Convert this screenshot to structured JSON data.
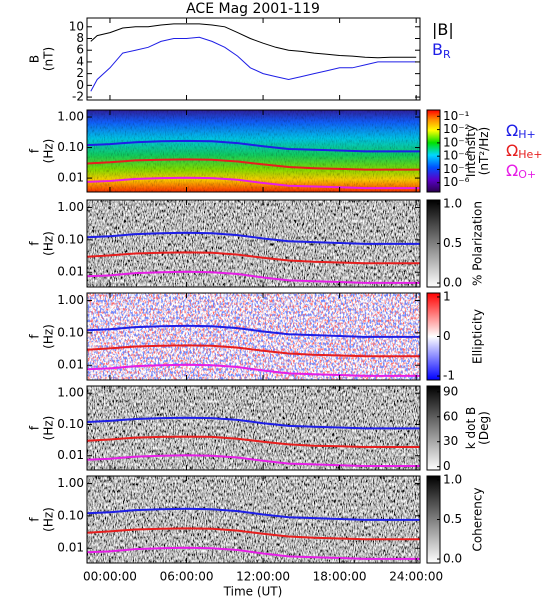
{
  "chart_data": [
    {
      "type": "line",
      "title": "ACE Mag 2001-119",
      "ylabel": [
        "B",
        "(nT)"
      ],
      "x": [
        -1.5,
        -1,
        0,
        1,
        2,
        3,
        4,
        5,
        6,
        7,
        8,
        9,
        10,
        11,
        12,
        13,
        14,
        15,
        16,
        17,
        18,
        19,
        20,
        21,
        22,
        23,
        24
      ],
      "series": [
        {
          "name": "|B|",
          "color": "#000000",
          "values": [
            7.5,
            8.5,
            9,
            9.8,
            10,
            10,
            10.3,
            10.5,
            10.5,
            10.5,
            10.3,
            10,
            9,
            8,
            7.2,
            6.5,
            6,
            5.8,
            5.5,
            5.3,
            5.1,
            5,
            4.8,
            4.7,
            4.8,
            4.8,
            4.8
          ]
        },
        {
          "name": "B",
          "subscript": "R",
          "color": "#1e1ee6",
          "values": [
            -1,
            1,
            3,
            5.5,
            6,
            6.5,
            7.5,
            8,
            8,
            8.2,
            7.5,
            6.5,
            5,
            3,
            2,
            1.5,
            1,
            1.5,
            2,
            2.5,
            3,
            3,
            3.5,
            4,
            4,
            4,
            4
          ]
        }
      ],
      "xlim": [
        -1.8,
        24.3
      ],
      "xticks": [
        0,
        6,
        12,
        18,
        24
      ],
      "ylim": [
        -2.5,
        11.5
      ],
      "yticks": [
        -2,
        0,
        2,
        4,
        6,
        8,
        10
      ]
    },
    {
      "type": "spectrogram",
      "ylabel": [
        "f",
        "(Hz)"
      ],
      "ylog": true,
      "colorscale": "rainbow",
      "zlog": true,
      "zlabel": [
        "Intensity",
        "(nT²/Hz)"
      ],
      "x": [
        -1.8,
        0,
        2,
        4,
        6,
        8,
        10,
        12,
        14,
        16,
        18,
        20,
        22,
        24.3
      ],
      "series": [
        {
          "name": "Ω",
          "subscript": "H+",
          "color": "#1e1ee6",
          "values": [
            0.12,
            0.13,
            0.15,
            0.16,
            0.165,
            0.16,
            0.14,
            0.11,
            0.09,
            0.085,
            0.08,
            0.075,
            0.075,
            0.075
          ]
        },
        {
          "name": "Ω",
          "subscript": "He+",
          "color": "#e61e1e",
          "values": [
            0.03,
            0.033,
            0.038,
            0.04,
            0.041,
            0.04,
            0.035,
            0.028,
            0.023,
            0.021,
            0.02,
            0.019,
            0.019,
            0.019
          ]
        },
        {
          "name": "Ω",
          "subscript": "O+",
          "color": "#e61ee6",
          "values": [
            0.0075,
            0.008,
            0.0094,
            0.01,
            0.0103,
            0.01,
            0.0088,
            0.0069,
            0.0056,
            0.0053,
            0.005,
            0.0047,
            0.0047,
            0.0047
          ]
        }
      ],
      "xlim": [
        -1.8,
        24.3
      ],
      "xticks": [
        0,
        6,
        12,
        18,
        24
      ],
      "ylim": [
        0.0035,
        1.7
      ],
      "yticks": [
        {
          "value": 1,
          "label": "1.00"
        },
        {
          "value": 0.1,
          "label": "0.10"
        },
        0.01
      ],
      "zlim": [
        2e-07,
        0.3
      ],
      "zticks": [
        {
          "value": 0.1,
          "label": "10⁻¹"
        },
        {
          "value": 0.01,
          "label": "10⁻²"
        },
        {
          "value": 0.001,
          "label": "10⁻³"
        },
        {
          "value": 0.0001,
          "label": "10⁻⁴"
        },
        {
          "value": 1e-05,
          "label": "10⁻⁵"
        },
        {
          "value": 1e-06,
          "label": "10⁻⁶"
        }
      ]
    },
    {
      "type": "spectrogram",
      "ylabel": [
        "f",
        "(Hz)"
      ],
      "ylog": true,
      "colorscale": "gray",
      "zlabel": [
        "% Polarization"
      ],
      "x": [
        -1.8,
        0,
        2,
        4,
        6,
        8,
        10,
        12,
        14,
        16,
        18,
        20,
        22,
        24.3
      ],
      "series": [
        {
          "color": "#1e1ee6",
          "values": [
            0.12,
            0.13,
            0.15,
            0.16,
            0.165,
            0.16,
            0.14,
            0.11,
            0.09,
            0.085,
            0.08,
            0.075,
            0.075,
            0.075
          ]
        },
        {
          "color": "#e61e1e",
          "values": [
            0.03,
            0.033,
            0.038,
            0.04,
            0.041,
            0.04,
            0.035,
            0.028,
            0.023,
            0.021,
            0.02,
            0.019,
            0.019,
            0.019
          ]
        },
        {
          "color": "#e61ee6",
          "values": [
            0.0075,
            0.008,
            0.0094,
            0.01,
            0.0103,
            0.01,
            0.0088,
            0.0069,
            0.0056,
            0.0053,
            0.005,
            0.0047,
            0.0047,
            0.0047
          ]
        }
      ],
      "xlim": [
        -1.8,
        24.3
      ],
      "xticks": [
        0,
        6,
        12,
        18,
        24
      ],
      "ylim": [
        0.0035,
        1.7
      ],
      "yticks": [
        {
          "value": 1,
          "label": "1.00"
        },
        {
          "value": 0.1,
          "label": "0.10"
        },
        0.01
      ],
      "zlim": [
        -0.05,
        1.05
      ],
      "zticks": [
        {
          "value": 1,
          "label": "1.0"
        },
        0.5,
        {
          "value": 0,
          "label": "0.0"
        }
      ]
    },
    {
      "type": "spectrogram",
      "ylabel": [
        "f",
        "(Hz)"
      ],
      "ylog": true,
      "colorscale": "bwr",
      "zlabel": [
        "Ellipticity"
      ],
      "x": [
        -1.8,
        0,
        2,
        4,
        6,
        8,
        10,
        12,
        14,
        16,
        18,
        20,
        22,
        24.3
      ],
      "series": [
        {
          "color": "#1e1ee6",
          "values": [
            0.12,
            0.13,
            0.15,
            0.16,
            0.165,
            0.16,
            0.14,
            0.11,
            0.09,
            0.085,
            0.08,
            0.075,
            0.075,
            0.075
          ]
        },
        {
          "color": "#e61e1e",
          "values": [
            0.03,
            0.033,
            0.038,
            0.04,
            0.041,
            0.04,
            0.035,
            0.028,
            0.023,
            0.021,
            0.02,
            0.019,
            0.019,
            0.019
          ]
        },
        {
          "color": "#e61ee6",
          "values": [
            0.0075,
            0.008,
            0.0094,
            0.01,
            0.0103,
            0.01,
            0.0088,
            0.0069,
            0.0056,
            0.0053,
            0.005,
            0.0047,
            0.0047,
            0.0047
          ]
        }
      ],
      "xlim": [
        -1.8,
        24.3
      ],
      "xticks": [
        0,
        6,
        12,
        18,
        24
      ],
      "ylim": [
        0.0035,
        1.7
      ],
      "yticks": [
        {
          "value": 1,
          "label": "1.00"
        },
        {
          "value": 0.1,
          "label": "0.10"
        },
        0.01
      ],
      "zlim": [
        -1.1,
        1.1
      ],
      "zticks": [
        1,
        0,
        -1
      ]
    },
    {
      "type": "spectrogram",
      "ylabel": [
        "f",
        "(Hz)"
      ],
      "ylog": true,
      "colorscale": "gray",
      "zlabel": [
        "k dot B",
        "(Deg)"
      ],
      "x": [
        -1.8,
        0,
        2,
        4,
        6,
        8,
        10,
        12,
        14,
        16,
        18,
        20,
        22,
        24.3
      ],
      "series": [
        {
          "color": "#1e1ee6",
          "values": [
            0.12,
            0.13,
            0.15,
            0.16,
            0.165,
            0.16,
            0.14,
            0.11,
            0.09,
            0.085,
            0.08,
            0.075,
            0.075,
            0.075
          ]
        },
        {
          "color": "#e61e1e",
          "values": [
            0.03,
            0.033,
            0.038,
            0.04,
            0.041,
            0.04,
            0.035,
            0.028,
            0.023,
            0.021,
            0.02,
            0.019,
            0.019,
            0.019
          ]
        },
        {
          "color": "#e61ee6",
          "values": [
            0.0075,
            0.008,
            0.0094,
            0.01,
            0.0103,
            0.01,
            0.0088,
            0.0069,
            0.0056,
            0.0053,
            0.005,
            0.0047,
            0.0047,
            0.0047
          ]
        }
      ],
      "xlim": [
        -1.8,
        24.3
      ],
      "xticks": [
        0,
        6,
        12,
        18,
        24
      ],
      "ylim": [
        0.0035,
        1.7
      ],
      "yticks": [
        {
          "value": 1,
          "label": "1.00"
        },
        {
          "value": 0.1,
          "label": "0.10"
        },
        0.01
      ],
      "zlim": [
        -4,
        97
      ],
      "zticks": [
        90,
        60,
        30,
        0
      ]
    },
    {
      "type": "spectrogram",
      "ylabel": [
        "f",
        "(Hz)"
      ],
      "ylog": true,
      "colorscale": "gray",
      "zlabel": [
        "Coherency"
      ],
      "x": [
        -1.8,
        0,
        2,
        4,
        6,
        8,
        10,
        12,
        14,
        16,
        18,
        20,
        22,
        24.3
      ],
      "series": [
        {
          "color": "#1e1ee6",
          "values": [
            0.12,
            0.13,
            0.15,
            0.16,
            0.165,
            0.16,
            0.14,
            0.11,
            0.09,
            0.085,
            0.08,
            0.075,
            0.075,
            0.075
          ]
        },
        {
          "color": "#e61e1e",
          "values": [
            0.03,
            0.033,
            0.038,
            0.04,
            0.041,
            0.04,
            0.035,
            0.028,
            0.023,
            0.021,
            0.02,
            0.019,
            0.019,
            0.019
          ]
        },
        {
          "color": "#e61ee6",
          "values": [
            0.0075,
            0.008,
            0.0094,
            0.01,
            0.0103,
            0.01,
            0.0088,
            0.0069,
            0.0056,
            0.0053,
            0.005,
            0.0047,
            0.0047,
            0.0047
          ]
        }
      ],
      "xlim": [
        -1.8,
        24.3
      ],
      "xlabel": "Time (UT)",
      "xticks": [
        {
          "value": 0,
          "label": "00:00:00"
        },
        {
          "value": 6,
          "label": "06:00:00"
        },
        {
          "value": 12,
          "label": "12:00:00"
        },
        {
          "value": 18,
          "label": "18:00:00"
        },
        {
          "value": 24,
          "label": "24:00:00"
        }
      ],
      "ylim": [
        0.0035,
        1.7
      ],
      "yticks": [
        {
          "value": 1,
          "label": "1.00"
        },
        {
          "value": 0.1,
          "label": "0.10"
        },
        0.01
      ],
      "zlim": [
        -0.05,
        1.05
      ],
      "zticks": [
        {
          "value": 1,
          "label": "1.0"
        },
        0.5,
        {
          "value": 0,
          "label": "0.0"
        }
      ]
    }
  ]
}
